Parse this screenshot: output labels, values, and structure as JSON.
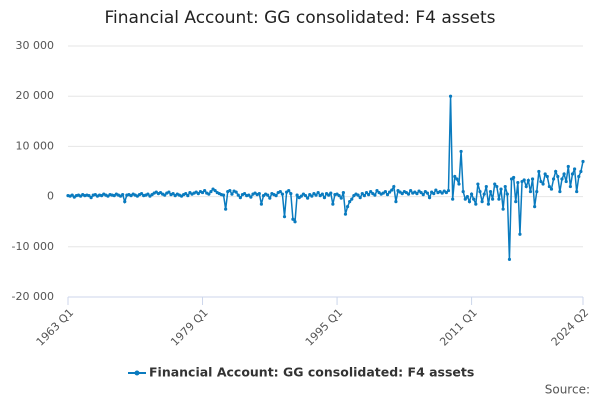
{
  "chart_data": {
    "type": "line",
    "title": "Financial Account: GG consolidated: F4 assets",
    "source": "Source:",
    "categories": [
      "1963 Q1",
      null,
      null,
      null,
      null,
      null,
      null,
      null,
      null,
      null,
      null,
      null,
      null,
      null,
      null,
      null,
      null,
      null,
      null,
      null,
      null,
      null,
      null,
      null,
      null,
      null,
      null,
      null,
      null,
      null,
      null,
      null,
      null,
      null,
      null,
      null,
      null,
      null,
      null,
      null,
      null,
      null,
      null,
      null,
      null,
      null,
      null,
      null,
      null,
      null,
      null,
      null,
      null,
      null,
      null,
      null,
      null,
      null,
      null,
      null,
      null,
      null,
      null,
      null,
      "1979 Q1",
      null,
      null,
      null,
      null,
      null,
      null,
      null,
      null,
      null,
      null,
      null,
      null,
      null,
      null,
      null,
      null,
      null,
      null,
      null,
      null,
      null,
      null,
      null,
      null,
      null,
      null,
      null,
      null,
      null,
      null,
      null,
      null,
      null,
      null,
      null,
      null,
      null,
      null,
      null,
      null,
      null,
      null,
      null,
      null,
      null,
      null,
      null,
      null,
      null,
      null,
      null,
      null,
      null,
      null,
      null,
      null,
      null,
      null,
      null,
      null,
      null,
      null,
      null,
      "1995 Q1",
      null,
      null,
      null,
      null,
      null,
      null,
      null,
      null,
      null,
      null,
      null,
      null,
      null,
      null,
      null,
      null,
      null,
      null,
      null,
      null,
      null,
      null,
      null,
      null,
      null,
      null,
      null,
      null,
      null,
      null,
      null,
      null,
      null,
      null,
      null,
      null,
      null,
      null,
      null,
      null,
      null,
      null,
      null,
      null,
      null,
      null,
      null,
      null,
      null,
      null,
      null,
      null,
      null,
      null,
      null,
      null,
      null,
      null,
      null,
      null,
      null,
      null,
      null,
      "2011 Q1",
      null,
      null,
      null,
      null,
      null,
      null,
      null,
      null,
      null,
      null,
      null,
      null,
      null,
      null,
      null,
      null,
      null,
      null,
      null,
      null,
      null,
      null,
      null,
      null,
      null,
      null,
      null,
      null,
      null,
      null,
      null,
      null,
      null,
      null,
      null,
      null,
      null,
      null,
      null,
      null,
      null,
      null,
      null,
      null,
      null,
      null,
      null,
      null,
      null,
      null,
      null,
      null,
      "2024 Q2"
    ],
    "series": [
      {
        "name": "Financial Account: GG consolidated: F4 assets",
        "color": "#0a7bbf",
        "values": [
          200,
          100,
          300,
          -100,
          200,
          300,
          100,
          400,
          200,
          300,
          200,
          -200,
          300,
          400,
          100,
          300,
          200,
          500,
          300,
          100,
          400,
          300,
          200,
          500,
          300,
          100,
          400,
          -1000,
          300,
          400,
          200,
          500,
          300,
          100,
          400,
          600,
          200,
          300,
          500,
          100,
          400,
          700,
          900,
          600,
          800,
          500,
          300,
          700,
          900,
          400,
          600,
          200,
          500,
          300,
          100,
          400,
          600,
          200,
          800,
          500,
          700,
          900,
          600,
          1000,
          800,
          1200,
          700,
          500,
          1000,
          1500,
          1200,
          800,
          600,
          400,
          300,
          -2500,
          1000,
          1200,
          500,
          1100,
          900,
          300,
          -200,
          400,
          600,
          200,
          300,
          -100,
          500,
          700,
          400,
          600,
          -1500,
          200,
          500,
          300,
          -300,
          600,
          400,
          200,
          800,
          1000,
          500,
          -4000,
          900,
          1200,
          600,
          -4500,
          -5000,
          300,
          -200,
          100,
          500,
          200,
          -300,
          400,
          100,
          600,
          300,
          800,
          200,
          500,
          -200,
          600,
          300,
          700,
          -1500,
          400,
          500,
          200,
          -300,
          800,
          -3500,
          -2000,
          -1000,
          -500,
          200,
          500,
          300,
          -200,
          600,
          200,
          800,
          400,
          1000,
          600,
          300,
          1200,
          800,
          500,
          700,
          1000,
          400,
          900,
          1300,
          2000,
          -1000,
          1200,
          900,
          600,
          1000,
          800,
          500,
          1200,
          700,
          900,
          600,
          1100,
          800,
          400,
          1000,
          700,
          -200,
          900,
          600,
          1300,
          800,
          1000,
          700,
          1100,
          800,
          1200,
          20000,
          -500,
          4000,
          3500,
          2500,
          9000,
          1000,
          -500,
          0,
          -1000,
          500,
          -500,
          -1500,
          2500,
          1000,
          -1000,
          500,
          2000,
          -1500,
          1000,
          -500,
          2500,
          2000,
          -500,
          1500,
          -2500,
          2000,
          500,
          -12500,
          3500,
          3800,
          -1000,
          2800,
          -7500,
          3000,
          3300,
          2000,
          3200,
          1000,
          3500,
          -2000,
          1000,
          5000,
          3000,
          2500,
          4500,
          4000,
          2000,
          1500,
          3500,
          5000,
          4000,
          1000,
          3500,
          4500,
          3000,
          6000,
          2000,
          4500,
          5500,
          1000,
          4000,
          5000,
          7000
        ]
      }
    ],
    "ylim": [
      -20000,
      30000
    ],
    "yticks": [
      {
        "value": -20000,
        "label": "-20 000"
      },
      {
        "value": -10000,
        "label": "-10 000"
      },
      0,
      {
        "value": 10000,
        "label": "10 000"
      },
      {
        "value": 20000,
        "label": "20 000"
      },
      {
        "value": 30000,
        "label": "30 000"
      }
    ],
    "grid": true,
    "legend": "bottom"
  }
}
